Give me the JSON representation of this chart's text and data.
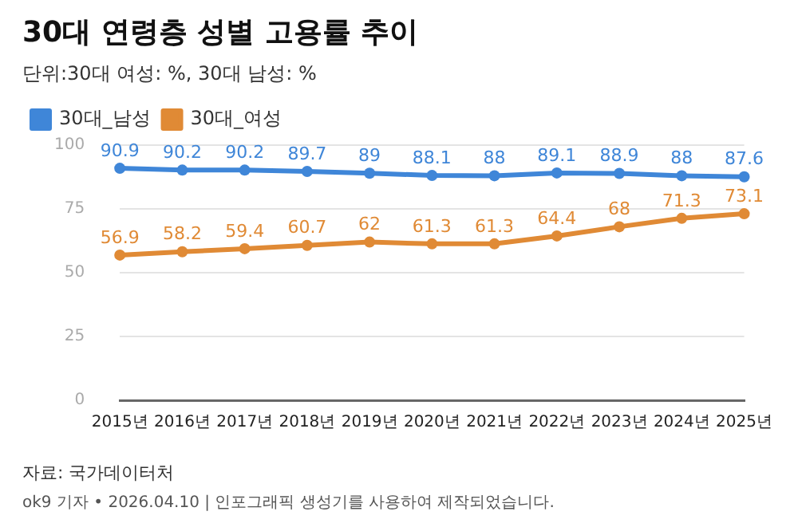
{
  "chart_data": {
    "type": "line",
    "title": "30대 연령층 성별 고용률 추이",
    "subtitle": "단위:30대 여성: %, 30대 남성: %",
    "categories": [
      "2015년",
      "2016년",
      "2017년",
      "2018년",
      "2019년",
      "2020년",
      "2021년",
      "2022년",
      "2023년",
      "2024년",
      "2025년"
    ],
    "series": [
      {
        "name": "30대_남성",
        "color": "#3f86d8",
        "values": [
          90.9,
          90.2,
          90.2,
          89.7,
          89,
          88.1,
          88,
          89.1,
          88.9,
          88,
          87.6
        ]
      },
      {
        "name": "30대_여성",
        "color": "#e08a35",
        "values": [
          56.9,
          58.2,
          59.4,
          60.7,
          62,
          61.3,
          61.3,
          64.4,
          68,
          71.3,
          73.1
        ]
      }
    ],
    "ylim": [
      0,
      100
    ],
    "yticks": [
      0,
      25,
      50,
      75,
      100
    ],
    "grid": "y",
    "legend": "top left",
    "marker": "circle",
    "line_style": "solid",
    "data_labels": true,
    "annotations": [
      "자료: 국가데이터처",
      "ok9 기자 • 2026.04.10 | 인포그래픽 생성기를 사용하여 제작되었습니다."
    ]
  }
}
